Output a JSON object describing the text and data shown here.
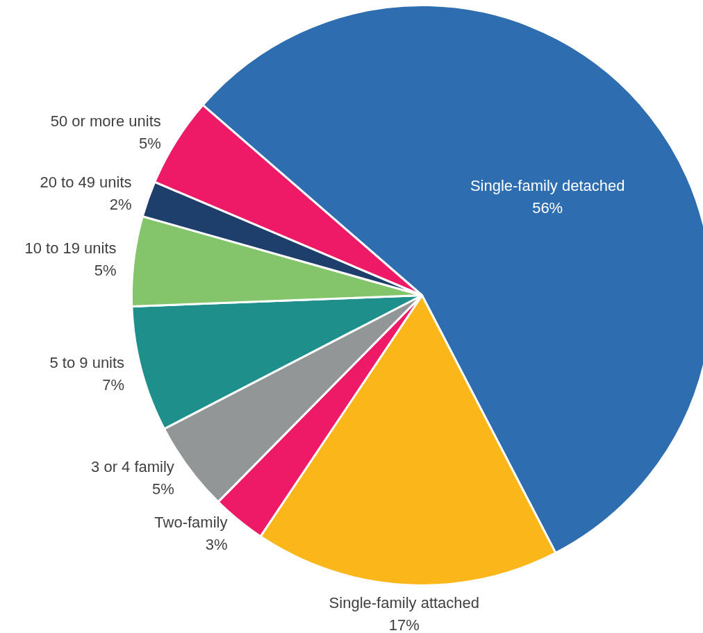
{
  "chart_data": {
    "type": "pie",
    "categories": [
      "Single-family detached",
      "Single-family attached",
      "Two-family",
      "3 or 4 family",
      "5 to 9 units",
      "10 to 19 units",
      "20 to 49 units",
      "50 or more units"
    ],
    "values": [
      56,
      17,
      3,
      5,
      7,
      5,
      2,
      5
    ],
    "value_labels": [
      "56%",
      "17%",
      "3%",
      "5%",
      "7%",
      "5%",
      "2%",
      "5%"
    ],
    "colors": [
      "#2e6eb0",
      "#fbb61a",
      "#ee1a68",
      "#939697",
      "#1f8f8c",
      "#84c46b",
      "#1e3f6b",
      "#ee1a68"
    ]
  }
}
